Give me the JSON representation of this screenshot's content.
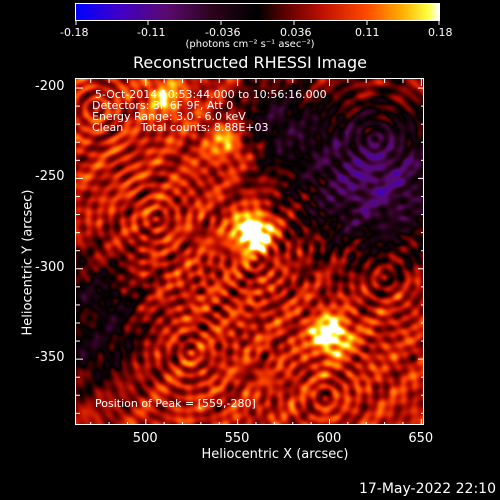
{
  "colorbar": {
    "tick_labels": [
      "-0.18",
      "-0.11",
      "-0.036",
      "0.036",
      "0.11",
      "0.18"
    ],
    "units": "(photons cm⁻² s⁻¹ asec⁻²)"
  },
  "title": "Reconstructed RHESSI Image",
  "info": {
    "time": "5-Oct-2014 10:53:44.000 to 10:56:16.000",
    "detectors": "Detectors: 3F 6F 9F, Att 0",
    "energy": "Energy Range: 3.0 - 6.0 keV",
    "clean": "Clean     Total counts: 8.88E+03"
  },
  "peak": "Position of Peak = [559,-280]",
  "xlabel": "Heliocentric X (arcsec)",
  "ylabel": "Heliocentric Y (arcsec)",
  "date": "17-May-2022 22:10",
  "chart_data": {
    "type": "heatmap",
    "title": "Reconstructed RHESSI Image",
    "xlabel": "Heliocentric X (arcsec)",
    "ylabel": "Heliocentric Y (arcsec)",
    "xlim": [
      462,
      652
    ],
    "ylim": [
      -387,
      -195
    ],
    "x_ticks": [
      500,
      550,
      600,
      650
    ],
    "y_ticks": [
      -200,
      -250,
      -300,
      -350
    ],
    "x_tick_labels": [
      "500",
      "550",
      "600",
      "650"
    ],
    "y_tick_labels": [
      "-200",
      "-250",
      "-300",
      "-350"
    ],
    "color_range": [
      -0.18,
      0.18
    ],
    "colormap": "blue-black-red-yellow-white",
    "peak_position": [
      559,
      -280
    ],
    "sources": [
      {
        "x": 559,
        "y": -280,
        "intensity": 0.18
      },
      {
        "x": 601,
        "y": -337,
        "intensity": 0.14
      },
      {
        "x": 545,
        "y": -230,
        "intensity": 0.09
      },
      {
        "x": 510,
        "y": -205,
        "intensity": 0.08
      },
      {
        "x": 468,
        "y": -330,
        "intensity": 0.06
      }
    ]
  }
}
